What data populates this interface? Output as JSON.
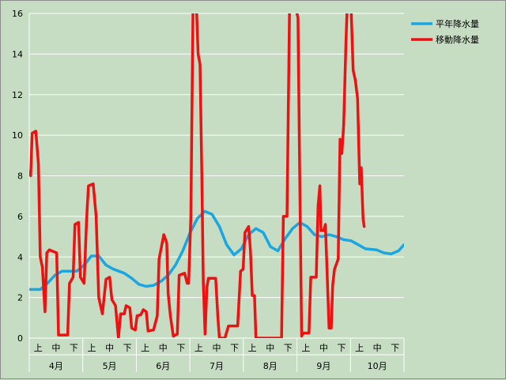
{
  "chart_data": {
    "type": "line",
    "title": "",
    "xlabel": "",
    "ylabel": "",
    "ylim": [
      0,
      16
    ],
    "yticks": [
      0,
      2,
      4,
      6,
      8,
      10,
      12,
      14,
      16
    ],
    "grid": true,
    "legend_position": "top-right",
    "periods": [
      "上",
      "中",
      "下"
    ],
    "months": [
      "4月",
      "5月",
      "6月",
      "7月",
      "8月",
      "9月",
      "10月"
    ],
    "colors": {
      "normal": "#1aa6e0",
      "moving": "#ee1111",
      "grid": "#ffffff",
      "background": "#c6dcc3"
    },
    "series": [
      {
        "name": "平年降水量",
        "key": "normal",
        "points": [
          [
            0,
            2.4
          ],
          [
            3,
            2.4
          ],
          [
            5,
            2.7
          ],
          [
            7,
            3.1
          ],
          [
            9,
            3.3
          ],
          [
            13,
            3.3
          ],
          [
            15,
            3.6
          ],
          [
            17,
            4.05
          ],
          [
            19,
            4.05
          ],
          [
            21,
            3.6
          ],
          [
            23,
            3.4
          ],
          [
            26,
            3.2
          ],
          [
            28,
            2.95
          ],
          [
            30,
            2.65
          ],
          [
            32,
            2.55
          ],
          [
            34,
            2.6
          ],
          [
            36,
            2.8
          ],
          [
            38,
            3.1
          ],
          [
            40,
            3.6
          ],
          [
            42,
            4.3
          ],
          [
            44,
            5.2
          ],
          [
            46,
            5.9
          ],
          [
            48,
            6.25
          ],
          [
            50,
            6.1
          ],
          [
            52,
            5.5
          ],
          [
            54,
            4.6
          ],
          [
            56,
            4.1
          ],
          [
            58,
            4.4
          ],
          [
            60,
            5.1
          ],
          [
            62,
            5.4
          ],
          [
            64,
            5.2
          ],
          [
            66,
            4.5
          ],
          [
            68,
            4.3
          ],
          [
            70,
            4.9
          ],
          [
            72,
            5.4
          ],
          [
            74,
            5.7
          ],
          [
            76,
            5.5
          ],
          [
            78,
            5.1
          ],
          [
            80,
            5.0
          ],
          [
            82,
            5.1
          ],
          [
            84,
            5.0
          ],
          [
            86,
            4.85
          ],
          [
            88,
            4.8
          ],
          [
            90,
            4.6
          ],
          [
            92,
            4.4
          ],
          [
            95,
            4.35
          ],
          [
            97,
            4.2
          ],
          [
            99,
            4.15
          ],
          [
            101,
            4.3
          ],
          [
            102.5,
            4.6
          ]
        ]
      },
      {
        "name": "移動降水量",
        "key": "moving",
        "points": [
          [
            0,
            8.2
          ],
          [
            0.4,
            8.0
          ],
          [
            0.8,
            10.1
          ],
          [
            1.8,
            10.2
          ],
          [
            2.5,
            8.6
          ],
          [
            3,
            4.0
          ],
          [
            3.6,
            3.5
          ],
          [
            4.3,
            1.3
          ],
          [
            4.8,
            4.2
          ],
          [
            5.5,
            4.35
          ],
          [
            7.5,
            4.2
          ],
          [
            8,
            0.15
          ],
          [
            10.5,
            0.15
          ],
          [
            11,
            2.7
          ],
          [
            12,
            3.0
          ],
          [
            12.5,
            5.6
          ],
          [
            13.5,
            5.7
          ],
          [
            14,
            3.0
          ],
          [
            15,
            2.7
          ],
          [
            15.7,
            5.9
          ],
          [
            16.2,
            7.5
          ],
          [
            17.5,
            7.6
          ],
          [
            18.3,
            6.0
          ],
          [
            19,
            2.0
          ],
          [
            20,
            1.2
          ],
          [
            21,
            2.9
          ],
          [
            22,
            3.0
          ],
          [
            22.6,
            1.9
          ],
          [
            23.6,
            1.6
          ],
          [
            24.4,
            0.0
          ],
          [
            25,
            1.2
          ],
          [
            26,
            1.2
          ],
          [
            26.5,
            1.6
          ],
          [
            27.5,
            1.5
          ],
          [
            28,
            0.5
          ],
          [
            29,
            0.4
          ],
          [
            29.5,
            1.1
          ],
          [
            30.5,
            1.15
          ],
          [
            31.2,
            1.4
          ],
          [
            32,
            1.3
          ],
          [
            32.5,
            0.35
          ],
          [
            34,
            0.4
          ],
          [
            35,
            1.1
          ],
          [
            35.5,
            3.9
          ],
          [
            36.8,
            5.1
          ],
          [
            37.6,
            4.7
          ],
          [
            38,
            2.2
          ],
          [
            38.6,
            1.1
          ],
          [
            39.4,
            0.1
          ],
          [
            40.5,
            0.2
          ],
          [
            41,
            3.1
          ],
          [
            42.5,
            3.2
          ],
          [
            43.2,
            2.7
          ],
          [
            43.6,
            2.7
          ],
          [
            44.2,
            6.0
          ],
          [
            44.8,
            16.5
          ],
          [
            45.7,
            16.5
          ],
          [
            46.2,
            14.0
          ],
          [
            46.7,
            13.5
          ],
          [
            47.2,
            8.0
          ],
          [
            47.6,
            2.8
          ],
          [
            48.1,
            0.2
          ],
          [
            48.6,
            2.5
          ],
          [
            49,
            2.95
          ],
          [
            51,
            2.95
          ],
          [
            51.6,
            1.0
          ],
          [
            52,
            0.0
          ],
          [
            53.5,
            0.0
          ],
          [
            54.5,
            0.6
          ],
          [
            57,
            0.6
          ],
          [
            57.8,
            3.3
          ],
          [
            58.5,
            3.4
          ],
          [
            59,
            5.2
          ],
          [
            60,
            5.5
          ],
          [
            60.5,
            4.3
          ],
          [
            61,
            2.1
          ],
          [
            61.6,
            2.1
          ],
          [
            62,
            0.0
          ],
          [
            69,
            0.0
          ],
          [
            69.5,
            6.0
          ],
          [
            70.5,
            6.0
          ],
          [
            71.2,
            16.5
          ],
          [
            72.5,
            16.5
          ],
          [
            73.5,
            15.8
          ],
          [
            74,
            7.7
          ],
          [
            74.5,
            0.1
          ],
          [
            75,
            0.25
          ],
          [
            76.5,
            0.25
          ],
          [
            77,
            3.0
          ],
          [
            78.5,
            3.0
          ],
          [
            79,
            6.5
          ],
          [
            79.5,
            7.5
          ],
          [
            79.8,
            5.3
          ],
          [
            80.5,
            5.3
          ],
          [
            81,
            5.6
          ],
          [
            81.6,
            2.5
          ],
          [
            82,
            0.5
          ],
          [
            82.6,
            0.5
          ],
          [
            83,
            2.6
          ],
          [
            83.5,
            3.4
          ],
          [
            84.5,
            3.9
          ],
          [
            85,
            9.8
          ],
          [
            85.5,
            9.1
          ],
          [
            86,
            10.5
          ],
          [
            86.6,
            14.5
          ],
          [
            87,
            16.5
          ],
          [
            88,
            16.5
          ],
          [
            88.6,
            13.2
          ],
          [
            89.2,
            12.7
          ],
          [
            89.8,
            11.8
          ],
          [
            90.4,
            7.6
          ],
          [
            90.8,
            8.4
          ],
          [
            91.3,
            5.9
          ],
          [
            91.6,
            5.5
          ]
        ]
      }
    ]
  }
}
